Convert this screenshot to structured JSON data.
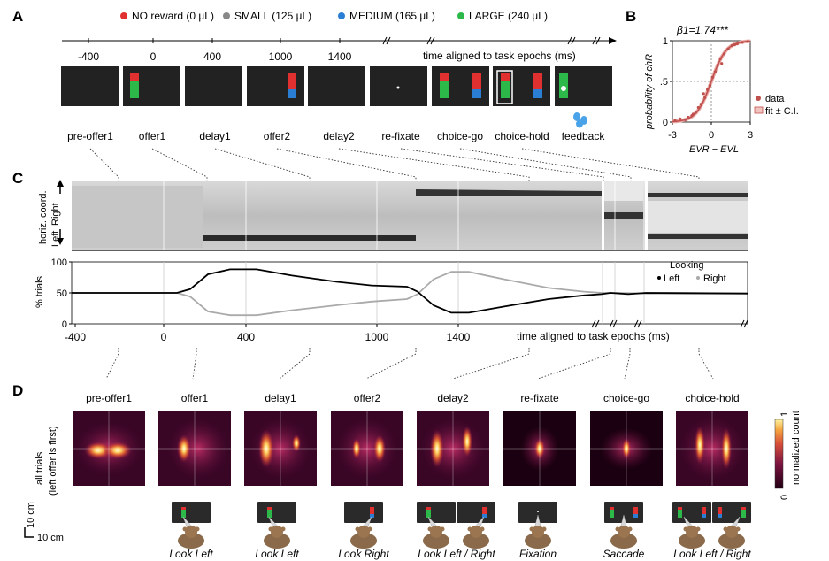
{
  "panels": {
    "A": "A",
    "B": "B",
    "C": "C",
    "D": "D"
  },
  "legend": [
    {
      "label": "NO reward (0 µL)",
      "color": "#e03030"
    },
    {
      "label": "SMALL (125 µL)",
      "color": "#888888"
    },
    {
      "label": "MEDIUM (165 µL)",
      "color": "#2a7fd4"
    },
    {
      "label": "LARGE (240 µL)",
      "color": "#2db84a"
    }
  ],
  "timeline": {
    "ticks": [
      "-400",
      "0",
      "400",
      "1000",
      "1400"
    ],
    "axis_label": "time aligned to task epochs (ms)"
  },
  "epochs": [
    "pre-offer1",
    "offer1",
    "delay1",
    "offer2",
    "delay2",
    "re-fixate",
    "choice-go",
    "choice-hold",
    "feedback"
  ],
  "panel_b": {
    "title": "β1=1.74***",
    "ylabel": "probability of chR",
    "xlabel": "EVR − EVL",
    "xticks": [
      "-3",
      "0",
      "3"
    ],
    "yticks": [
      "0",
      ".5",
      "1"
    ],
    "legend_data": "data",
    "legend_fit": "fit ± C.I."
  },
  "panel_c": {
    "heat_ylabel": "horiz. coord.",
    "right_label": "Right",
    "left_label": "Left",
    "ylabel": "% trials",
    "yticks": [
      "0",
      "50",
      "100"
    ],
    "xticks": [
      "-400",
      "0",
      "400",
      "1000",
      "1400"
    ],
    "xlabel": "time aligned to task epochs (ms)",
    "legend_title": "Looking",
    "legend_left": "Left",
    "legend_right": "Right"
  },
  "panel_d": {
    "epochs": [
      "pre-offer1",
      "offer1",
      "delay1",
      "offer2",
      "delay2",
      "re-fixate",
      "choice-go",
      "choice-hold"
    ],
    "row_label_1": "all trials",
    "row_label_2": "(left offer is first)",
    "colorbar_label": "normalized count",
    "colorbar_max": "1",
    "colorbar_min": "0",
    "scale_v": "10 cm",
    "scale_h": "10 cm",
    "actions": [
      "Look Left",
      "Look Left",
      "Look Right",
      "Look Left / Right",
      "Fixation",
      "Saccade",
      "Look Left / Right"
    ]
  },
  "colors": {
    "left": "#000000",
    "right": "#aaaaaa",
    "fit": "#c0504d"
  }
}
